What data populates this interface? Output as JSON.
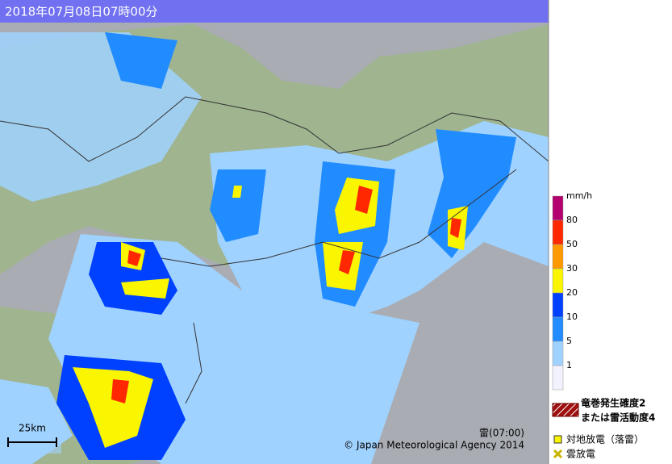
{
  "header": {
    "title": "2018年07月08日07時00分"
  },
  "legend": {
    "unit": "mm/h",
    "labels": [
      80,
      50,
      30,
      20,
      10,
      5,
      1
    ],
    "colors": [
      "#b4006e",
      "#ff2800",
      "#ff9900",
      "#faf500",
      "#0041ff",
      "#218cff",
      "#a0d2ff",
      "#f2f2ff"
    ],
    "tornado": {
      "color": "#a01010",
      "lines": [
        "竜巻発生確度2",
        "または雷活動度4"
      ]
    },
    "ground_strike": {
      "color": "#faf500",
      "label": "対地放電（落雷）"
    },
    "cloud_discharge": {
      "color": "#c8b400",
      "label": "雲放電"
    }
  },
  "map": {
    "scale": "25km",
    "lightning_time": "雷(07:00)",
    "copyright": "© Japan Meteorological Agency 2014"
  }
}
